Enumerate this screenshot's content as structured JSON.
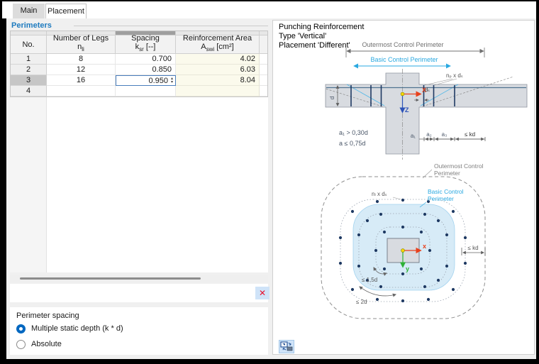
{
  "tabs": [
    {
      "label": "Main",
      "active": false
    },
    {
      "label": "Placement",
      "active": true
    }
  ],
  "left_panel": {
    "section_title": "Perimeters",
    "table": {
      "columns": {
        "no": {
          "label": "No."
        },
        "legs": {
          "label": "Number of Legs",
          "symbol": "n",
          "sub": "li",
          "unit": ""
        },
        "spacing": {
          "label": "Spacing",
          "symbol": "k",
          "sub": "sr",
          "unit": "[--]"
        },
        "area": {
          "label": "Reinforcement Area",
          "symbol": "A",
          "sub": "swi",
          "unit": "[cm²]"
        }
      },
      "rows": [
        {
          "no": "1",
          "legs": "8",
          "spacing": "0.700",
          "area": "4.02",
          "selected": false,
          "editing": false
        },
        {
          "no": "2",
          "legs": "12",
          "spacing": "0.850",
          "area": "6.03",
          "selected": false,
          "editing": false
        },
        {
          "no": "3",
          "legs": "16",
          "spacing": "0.950",
          "area": "8.04",
          "selected": true,
          "editing": true
        },
        {
          "no": "4",
          "legs": "",
          "spacing": "",
          "area": "",
          "selected": false,
          "editing": false
        }
      ]
    },
    "toolbar": {
      "delete_label": "✕"
    },
    "perimeter_spacing": {
      "title": "Perimeter spacing",
      "options": [
        {
          "label": "Multiple static depth (k * d)",
          "selected": true
        },
        {
          "label": "Absolute",
          "selected": false
        }
      ]
    }
  },
  "right_panel": {
    "title_lines": [
      "Punching Reinforcement",
      "Type 'Vertical'",
      "Placement 'Different'"
    ],
    "section_diagram": {
      "outermost_label": "Outermost Control Perimeter",
      "basic_label": "Basic Control Perimeter",
      "np_ds_label": "nₚ x dₛ",
      "d_label": "d",
      "ds_label": "dₛ",
      "x_label": "X",
      "z_label": "Z",
      "a1_label": "a₁",
      "a2_label": "a₂",
      "a3_label": "a₃",
      "kd_label": "≤ kd",
      "cond1": "a₁ > 0,30d",
      "cond2": "a ≤ 0,75d"
    },
    "plan_diagram": {
      "outermost_l1": "Outermost Control",
      "outermost_l2": "Perimeter",
      "basic_l1": "Basic Control",
      "basic_l2": "Perimeter",
      "nl_ds_label": "nₗ x dₛ",
      "kd_label": "≤ kd",
      "s15_label": "≤ 1,5d",
      "s2_label": "≤ 2d",
      "x_label": "x",
      "y_label": "y"
    },
    "colors": {
      "accent_blue": "#1e7bbf",
      "diagram_blue": "#29a8e0",
      "navy": "#1f3a63",
      "red_axis": "#e8401c",
      "green_axis": "#2eb135",
      "delete_red": "#e8112d",
      "radio_blue": "#0067c0",
      "basic_fill": "#d7ebf7",
      "slab_fill": "#d8dbe0"
    }
  }
}
